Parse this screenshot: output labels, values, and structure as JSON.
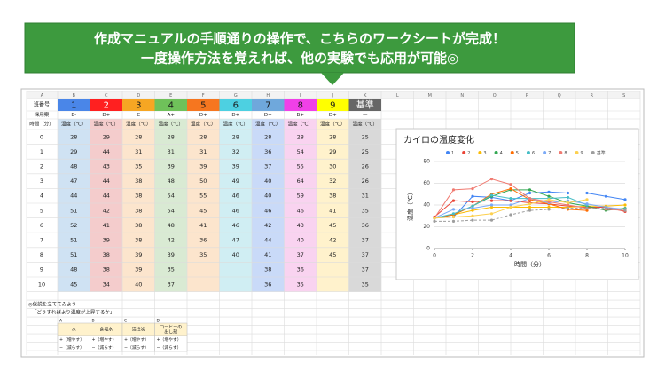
{
  "banner": {
    "line1": "作成マニュアルの手順通りの操作で、こちらのワークシートが完成！",
    "line2": "一度操作方法を覚えれば、他の実験でも応用が可能◎"
  },
  "sheet": {
    "columns": [
      "A",
      "B",
      "C",
      "D",
      "E",
      "F",
      "G",
      "H",
      "I",
      "J",
      "K",
      "L",
      "M",
      "N",
      "O",
      "P",
      "Q",
      "R",
      "S"
    ]
  },
  "table": {
    "group_label": "班番号",
    "groups": [
      "1",
      "2",
      "3",
      "4",
      "5",
      "6",
      "7",
      "8",
      "9",
      "基準"
    ],
    "colors": [
      "#4a86e8",
      "#ff2020",
      "#f6a623",
      "#6fc15a",
      "#f6761f",
      "#4dd0e1",
      "#6fa8dc",
      "#f040e8",
      "#ffff00",
      "#666666"
    ],
    "tints": [
      "#cfe2f3",
      "#f4cccc",
      "#fce5cd",
      "#d9ead3",
      "#fce5cd",
      "#d0eef3",
      "#c9daf8",
      "#f9d3f0",
      "#fff2cc",
      "#d9d9d9"
    ],
    "plan_label": "採用案",
    "plans": [
      "B-",
      "D+",
      "C",
      "A+",
      "D+",
      "D+",
      "D+",
      "B+",
      "D+",
      "—"
    ],
    "time_label": "時間（分）",
    "temp_label": "温度（℃）",
    "times": [
      0,
      1,
      2,
      3,
      4,
      5,
      6,
      7,
      8,
      9,
      10
    ],
    "temps": [
      [
        28,
        29,
        28,
        28,
        28,
        28,
        28,
        28,
        28,
        25
      ],
      [
        29,
        44,
        31,
        31,
        31,
        32,
        36,
        54,
        29,
        25
      ],
      [
        48,
        43,
        35,
        39,
        39,
        39,
        37,
        55,
        30,
        26
      ],
      [
        47,
        44,
        38,
        48,
        50,
        49,
        40,
        64,
        32,
        26
      ],
      [
        44,
        44,
        38,
        54,
        55,
        46,
        40,
        59,
        38,
        31
      ],
      [
        51,
        42,
        38,
        54,
        45,
        46,
        46,
        46,
        41,
        35
      ],
      [
        52,
        41,
        38,
        48,
        41,
        46,
        42,
        43,
        45,
        36
      ],
      [
        51,
        39,
        38,
        42,
        36,
        47,
        44,
        40,
        42,
        37
      ],
      [
        51,
        38,
        39,
        39,
        35,
        40,
        41,
        37,
        45,
        37
      ],
      [
        48,
        38,
        39,
        35,
        null,
        null,
        38,
        36,
        null,
        37
      ],
      [
        45,
        34,
        40,
        37,
        null,
        null,
        36,
        35,
        null,
        35
      ]
    ]
  },
  "chart_data": {
    "type": "line",
    "title": "カイロの温度変化",
    "x_label": "時間（分）",
    "y_label": "温度（℃）",
    "x": [
      0,
      1,
      2,
      3,
      4,
      5,
      6,
      7,
      8,
      9,
      10
    ],
    "xlim": [
      0,
      10
    ],
    "xticks": [
      0,
      2,
      4,
      6,
      8,
      10
    ],
    "ylim": [
      0,
      80
    ],
    "yticks": [
      0,
      20,
      40,
      60,
      80
    ],
    "grid": true,
    "series": [
      {
        "name": "1",
        "color": "#4285f4",
        "values": [
          28,
          29,
          48,
          47,
          44,
          51,
          52,
          51,
          51,
          48,
          45
        ]
      },
      {
        "name": "2",
        "color": "#ea4335",
        "values": [
          29,
          44,
          43,
          44,
          44,
          42,
          41,
          39,
          38,
          38,
          34
        ]
      },
      {
        "name": "3",
        "color": "#fbbc04",
        "values": [
          28,
          31,
          35,
          38,
          38,
          38,
          38,
          38,
          39,
          39,
          40
        ]
      },
      {
        "name": "4",
        "color": "#34a853",
        "values": [
          28,
          31,
          39,
          48,
          54,
          54,
          48,
          42,
          39,
          35,
          37
        ]
      },
      {
        "name": "5",
        "color": "#ff6d01",
        "values": [
          28,
          31,
          39,
          50,
          55,
          45,
          41,
          36,
          35,
          null,
          null
        ]
      },
      {
        "name": "6",
        "color": "#46bdc6",
        "values": [
          28,
          32,
          39,
          49,
          46,
          46,
          46,
          47,
          40,
          null,
          null
        ]
      },
      {
        "name": "7",
        "color": "#7baaf7",
        "values": [
          28,
          36,
          37,
          40,
          40,
          46,
          42,
          44,
          41,
          38,
          36
        ]
      },
      {
        "name": "8",
        "color": "#f07b72",
        "values": [
          28,
          54,
          55,
          64,
          59,
          46,
          43,
          40,
          37,
          36,
          35
        ]
      },
      {
        "name": "9",
        "color": "#fcd04f",
        "values": [
          28,
          29,
          30,
          32,
          38,
          41,
          45,
          42,
          45,
          null,
          null
        ]
      },
      {
        "name": "基準",
        "color": "#9e9e9e",
        "values": [
          25,
          25,
          26,
          26,
          31,
          35,
          36,
          37,
          37,
          37,
          35
        ]
      }
    ]
  },
  "hypothesis": {
    "heading": "◎仮説を立ててみよう",
    "question": "「どうすればより温度が上昇するか」",
    "letters": [
      "A",
      "B",
      "C",
      "D"
    ],
    "items": [
      [
        "水"
      ],
      [
        "食塩水"
      ],
      [
        "活性炭"
      ],
      [
        "コーヒーの",
        "出し殻"
      ]
    ],
    "plus": "+（増やす）",
    "minus": "−（減らす）"
  }
}
